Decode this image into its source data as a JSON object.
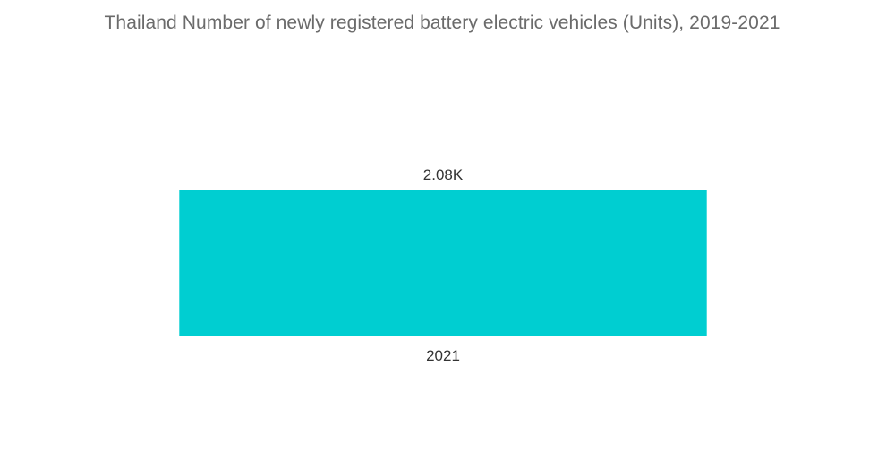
{
  "chart_data": {
    "type": "bar",
    "title": "Thailand Number of newly registered battery electric vehicles (Units), 2019-2021",
    "categories": [
      "2021"
    ],
    "values": [
      2080
    ],
    "data_labels": [
      "2.08K"
    ],
    "xlabel": "",
    "ylabel": "",
    "ylim": [
      0,
      2080
    ],
    "grid": false,
    "legend": "none",
    "bar_color": "#00ced1"
  }
}
